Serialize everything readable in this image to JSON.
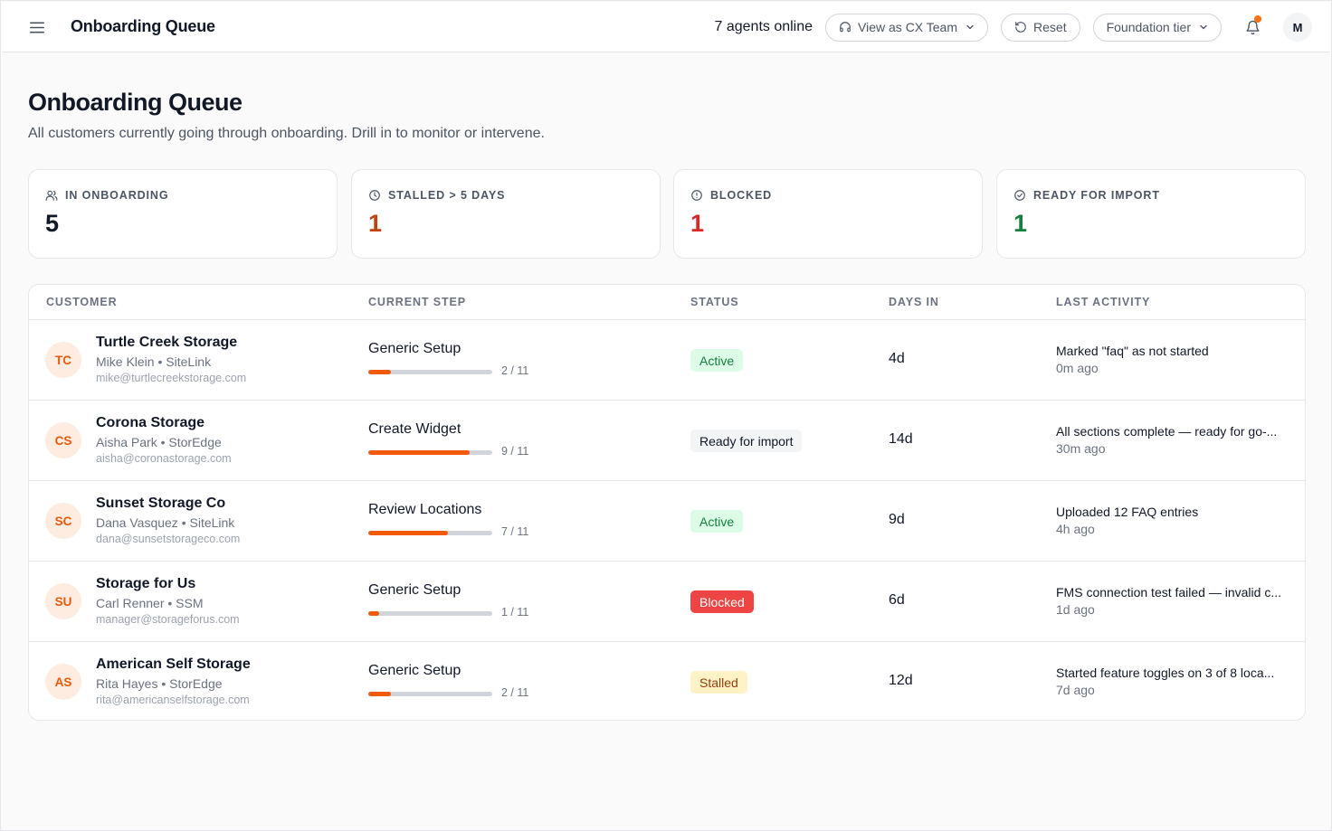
{
  "header": {
    "app_title": "Onboarding Queue",
    "agents_online": "7 agents online",
    "view_as_label": "View as CX Team",
    "reset_label": "Reset",
    "tier_label": "Foundation tier",
    "avatar_initial": "M",
    "icons": {
      "menu": "hamburger-menu-icon",
      "view_as": "headset-icon",
      "reset": "rotate-ccw-icon",
      "notifications": "bell-icon"
    },
    "notification_dot_color": "#f97316"
  },
  "page": {
    "title": "Onboarding Queue",
    "subtitle": "All customers currently going through onboarding. Drill in to monitor or intervene."
  },
  "stats": [
    {
      "label": "IN ONBOARDING",
      "value": "5",
      "icon": "users-icon",
      "color": "#111827"
    },
    {
      "label": "STALLED > 5 DAYS",
      "value": "1",
      "icon": "clock-icon",
      "color": "#c2410c"
    },
    {
      "label": "BLOCKED",
      "value": "1",
      "icon": "alert-circle-icon",
      "color": "#dc2626"
    },
    {
      "label": "READY FOR IMPORT",
      "value": "1",
      "icon": "check-circle-icon",
      "color": "#15803d"
    }
  ],
  "table": {
    "columns": [
      "CUSTOMER",
      "CURRENT STEP",
      "STATUS",
      "DAYS IN",
      "LAST ACTIVITY"
    ],
    "rows": [
      {
        "initials": "TC",
        "name": "Turtle Creek Storage",
        "contact": "Mike Klein",
        "platform": "SiteLink",
        "email": "mike@turtlecreekstorage.com",
        "step": "Generic Setup",
        "step_count": "2 / 11",
        "progress": 0.18,
        "status": "Active",
        "status_kind": "active",
        "days": "4d",
        "activity": "Marked \"faq\" as not started",
        "activity_time": "0m ago"
      },
      {
        "initials": "CS",
        "name": "Corona Storage",
        "contact": "Aisha Park",
        "platform": "StorEdge",
        "email": "aisha@coronastorage.com",
        "step": "Create Widget",
        "step_count": "9 / 11",
        "progress": 0.82,
        "status": "Ready for import",
        "status_kind": "ready",
        "days": "14d",
        "activity": "All sections complete — ready for go-...",
        "activity_time": "30m ago"
      },
      {
        "initials": "SC",
        "name": "Sunset Storage Co",
        "contact": "Dana Vasquez",
        "platform": "SiteLink",
        "email": "dana@sunsetstorageco.com",
        "step": "Review Locations",
        "step_count": "7 / 11",
        "progress": 0.64,
        "status": "Active",
        "status_kind": "active",
        "days": "9d",
        "activity": "Uploaded 12 FAQ entries",
        "activity_time": "4h ago"
      },
      {
        "initials": "SU",
        "name": "Storage for Us",
        "contact": "Carl Renner",
        "platform": "SSM",
        "email": "manager@storageforus.com",
        "step": "Generic Setup",
        "step_count": "1 / 11",
        "progress": 0.09,
        "status": "Blocked",
        "status_kind": "blocked",
        "days": "6d",
        "activity": "FMS connection test failed — invalid c...",
        "activity_time": "1d ago"
      },
      {
        "initials": "AS",
        "name": "American Self Storage",
        "contact": "Rita Hayes",
        "platform": "StorEdge",
        "email": "rita@americanselfstorage.com",
        "step": "Generic Setup",
        "step_count": "2 / 11",
        "progress": 0.18,
        "status": "Stalled",
        "status_kind": "stalled",
        "days": "12d",
        "activity": "Started feature toggles on 3 of 8 loca...",
        "activity_time": "7d ago"
      }
    ]
  },
  "colors": {
    "accent": "#f05a0a",
    "progress_track": "#d1d5db"
  }
}
